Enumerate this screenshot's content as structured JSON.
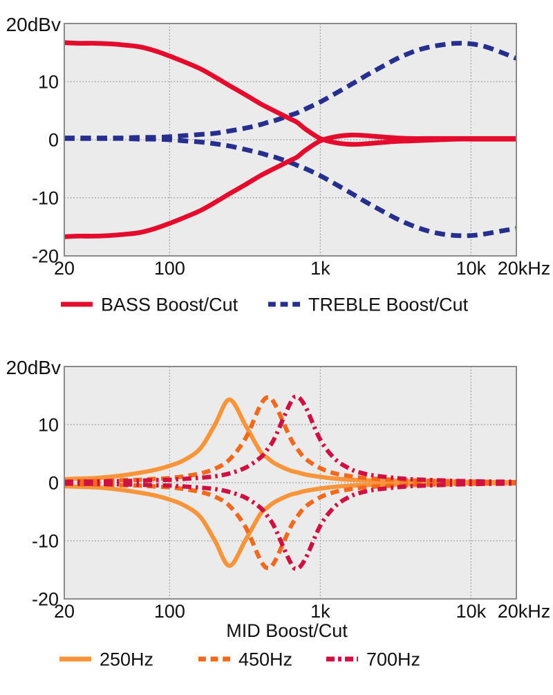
{
  "styles": {
    "plot_bg": "#ebebeb",
    "grid_color": "#999999",
    "border_color": "#8a8a8a",
    "text_color": "#111111",
    "bass_red": "#e40b2c",
    "treble_navy": "#272f8e",
    "mid250_orange": "#f8953a",
    "mid450_orange": "#f2691d",
    "mid700_crimson": "#ce1140"
  },
  "chart_data": [
    {
      "type": "line",
      "name": "bass-treble-response",
      "y_unit_label": "20dBv",
      "xlabel": "",
      "x_range_hz": [
        20,
        20000
      ],
      "y_range_db": [
        -20,
        20
      ],
      "x_scale": "log",
      "grid": "dotted",
      "grid_x_hz": [
        100,
        1000,
        10000
      ],
      "grid_y_db": [
        10,
        0,
        -10
      ],
      "x_ticks": [
        {
          "freq": 20,
          "label": "20"
        },
        {
          "freq": 100,
          "label": "100"
        },
        {
          "freq": 1000,
          "label": "1k"
        },
        {
          "freq": 10000,
          "label": "10k"
        },
        {
          "freq": 20000,
          "label": "20kHz"
        }
      ],
      "y_ticks": [
        {
          "value": 10,
          "label": "10"
        },
        {
          "value": 0,
          "label": "0"
        },
        {
          "value": -10,
          "label": "-10"
        },
        {
          "value": -20,
          "label": "-20"
        }
      ],
      "freqs_hz": [
        20,
        25,
        32,
        40,
        50,
        63,
        80,
        100,
        125,
        160,
        200,
        250,
        320,
        400,
        450,
        500,
        630,
        700,
        800,
        1000,
        1250,
        1600,
        2000,
        2500,
        3200,
        4000,
        5000,
        6300,
        8000,
        10000,
        12500,
        16000,
        20000
      ],
      "series": [
        {
          "name": "TREBLE Boost",
          "color": "#272f8e",
          "style": "dashed",
          "db": [
            0.3,
            0.3,
            0.3,
            0.3,
            0.3,
            0.4,
            0.4,
            0.5,
            0.7,
            0.9,
            1.1,
            1.5,
            2.0,
            2.6,
            3.0,
            3.3,
            4.2,
            4.6,
            5.3,
            6.5,
            7.9,
            9.5,
            11.0,
            12.4,
            13.9,
            15.0,
            15.8,
            16.3,
            16.6,
            16.5,
            16.0,
            15.0,
            14.0
          ]
        },
        {
          "name": "TREBLE Cut",
          "color": "#272f8e",
          "style": "dashed",
          "db": [
            0.2,
            0.2,
            0.2,
            0.2,
            0.2,
            0.1,
            0.1,
            0.0,
            -0.2,
            -0.4,
            -0.7,
            -1.1,
            -1.7,
            -2.3,
            -2.7,
            -3.0,
            -3.9,
            -4.4,
            -5.0,
            -6.2,
            -7.6,
            -9.2,
            -10.7,
            -12.1,
            -13.6,
            -14.7,
            -15.6,
            -16.2,
            -16.5,
            -16.5,
            -16.2,
            -15.7,
            -15.3
          ]
        },
        {
          "name": "BASS Boost",
          "color": "#e40b2c",
          "style": "solid",
          "db": [
            16.7,
            16.6,
            16.6,
            16.5,
            16.3,
            16.0,
            15.3,
            14.4,
            13.4,
            12.2,
            10.8,
            9.3,
            7.7,
            6.2,
            5.5,
            4.9,
            3.6,
            3.0,
            1.8,
            0.2,
            -0.5,
            -0.8,
            -0.7,
            -0.5,
            -0.3,
            -0.2,
            -0.1,
            0.0,
            0.1,
            0.1,
            0.1,
            0.1,
            0.1
          ]
        },
        {
          "name": "BASS Cut",
          "color": "#e40b2c",
          "style": "solid",
          "db": [
            -16.7,
            -16.6,
            -16.6,
            -16.5,
            -16.3,
            -16.0,
            -15.3,
            -14.4,
            -13.4,
            -12.2,
            -10.8,
            -9.3,
            -7.7,
            -6.2,
            -5.5,
            -4.9,
            -3.6,
            -3.0,
            -1.8,
            -0.2,
            0.5,
            0.8,
            0.7,
            0.5,
            0.3,
            0.2,
            0.2,
            0.2,
            0.2,
            0.2,
            0.2,
            0.2,
            0.2
          ]
        }
      ],
      "legend": [
        {
          "label": "BASS Boost/Cut",
          "color": "#e40b2c",
          "style": "solid"
        },
        {
          "label": "TREBLE Boost/Cut",
          "color": "#272f8e",
          "style": "dashed"
        }
      ]
    },
    {
      "type": "line",
      "name": "mid-response",
      "y_unit_label": "20dBv",
      "xlabel": "MID Boost/Cut",
      "x_range_hz": [
        20,
        20000
      ],
      "y_range_db": [
        -20,
        20
      ],
      "x_scale": "log",
      "grid": "dotted",
      "grid_x_hz": [
        100,
        1000,
        10000
      ],
      "grid_y_db": [
        10,
        0,
        -10
      ],
      "x_ticks": [
        {
          "freq": 20,
          "label": "20"
        },
        {
          "freq": 100,
          "label": "100"
        },
        {
          "freq": 1000,
          "label": "1k"
        },
        {
          "freq": 10000,
          "label": "10k"
        },
        {
          "freq": 20000,
          "label": "20kHz"
        }
      ],
      "y_ticks": [
        {
          "value": 10,
          "label": "10"
        },
        {
          "value": 0,
          "label": "0"
        },
        {
          "value": -10,
          "label": "-10"
        },
        {
          "value": -20,
          "label": "-20"
        }
      ],
      "freqs_hz": [
        20,
        25,
        32,
        40,
        50,
        63,
        80,
        100,
        125,
        160,
        200,
        250,
        320,
        400,
        450,
        500,
        630,
        700,
        800,
        1000,
        1250,
        1600,
        2000,
        2500,
        3200,
        4000,
        5000,
        6300,
        8000,
        10000,
        12500,
        16000,
        20000
      ],
      "series": [
        {
          "name": "250Hz Boost",
          "color": "#f8953a",
          "style": "solid",
          "db": [
            0.6,
            0.7,
            0.8,
            1.0,
            1.3,
            1.7,
            2.2,
            2.9,
            3.9,
            5.9,
            10.0,
            14.3,
            9.8,
            5.4,
            4.2,
            3.3,
            2.1,
            1.8,
            1.4,
            1.0,
            0.7,
            0.5,
            0.4,
            0.35,
            0.3,
            0.25,
            0.2,
            0.2,
            0.15,
            0.1,
            0.1,
            0.1,
            0.1
          ]
        },
        {
          "name": "250Hz Cut",
          "color": "#f8953a",
          "style": "solid",
          "db": [
            -0.6,
            -0.7,
            -0.8,
            -1.0,
            -1.3,
            -1.7,
            -2.2,
            -2.9,
            -3.9,
            -5.9,
            -10.0,
            -14.3,
            -9.8,
            -5.4,
            -4.2,
            -3.3,
            -2.1,
            -1.8,
            -1.4,
            -1.0,
            -0.7,
            -0.5,
            -0.4,
            -0.35,
            -0.3,
            -0.25,
            -0.2,
            -0.2,
            -0.15,
            -0.1,
            -0.1,
            -0.1,
            -0.1
          ]
        },
        {
          "name": "450Hz Boost",
          "color": "#f2691d",
          "style": "dashed",
          "db": [
            0.2,
            0.25,
            0.3,
            0.35,
            0.45,
            0.5,
            0.65,
            0.8,
            1.1,
            1.6,
            2.4,
            4.0,
            7.7,
            13.3,
            14.7,
            13.5,
            7.8,
            5.9,
            4.1,
            2.5,
            1.6,
            1.1,
            0.8,
            0.6,
            0.5,
            0.4,
            0.35,
            0.3,
            0.25,
            0.2,
            0.15,
            0.15,
            0.1
          ]
        },
        {
          "name": "450Hz Cut",
          "color": "#f2691d",
          "style": "dashed",
          "db": [
            -0.2,
            -0.25,
            -0.3,
            -0.35,
            -0.45,
            -0.5,
            -0.65,
            -0.8,
            -1.1,
            -1.6,
            -2.4,
            -4.0,
            -7.7,
            -13.3,
            -14.7,
            -13.5,
            -7.8,
            -5.9,
            -4.1,
            -2.5,
            -1.6,
            -1.1,
            -0.8,
            -0.6,
            -0.5,
            -0.4,
            -0.35,
            -0.3,
            -0.25,
            -0.2,
            -0.15,
            -0.15,
            -0.1
          ]
        },
        {
          "name": "700Hz Boost",
          "color": "#ce1140",
          "style": "dashdot",
          "db": [
            0.15,
            0.18,
            0.2,
            0.25,
            0.3,
            0.35,
            0.45,
            0.5,
            0.65,
            0.85,
            1.1,
            1.6,
            2.6,
            4.3,
            5.9,
            7.8,
            13.6,
            14.8,
            13.0,
            7.4,
            4.1,
            2.3,
            1.5,
            1.1,
            0.8,
            0.6,
            0.5,
            0.4,
            0.3,
            0.25,
            0.2,
            0.18,
            0.15
          ]
        },
        {
          "name": "700Hz Cut",
          "color": "#ce1140",
          "style": "dashdot",
          "db": [
            -0.15,
            -0.18,
            -0.2,
            -0.25,
            -0.3,
            -0.35,
            -0.45,
            -0.5,
            -0.65,
            -0.85,
            -1.1,
            -1.6,
            -2.6,
            -4.3,
            -5.9,
            -7.8,
            -13.6,
            -14.8,
            -13.0,
            -7.4,
            -4.1,
            -2.3,
            -1.5,
            -1.1,
            -0.8,
            -0.6,
            -0.5,
            -0.4,
            -0.3,
            -0.25,
            -0.2,
            -0.18,
            -0.15
          ]
        }
      ],
      "legend": [
        {
          "label": "250Hz",
          "color": "#f8953a",
          "style": "solid"
        },
        {
          "label": "450Hz",
          "color": "#f2691d",
          "style": "dashed"
        },
        {
          "label": "700Hz",
          "color": "#ce1140",
          "style": "dashdot"
        }
      ]
    }
  ]
}
